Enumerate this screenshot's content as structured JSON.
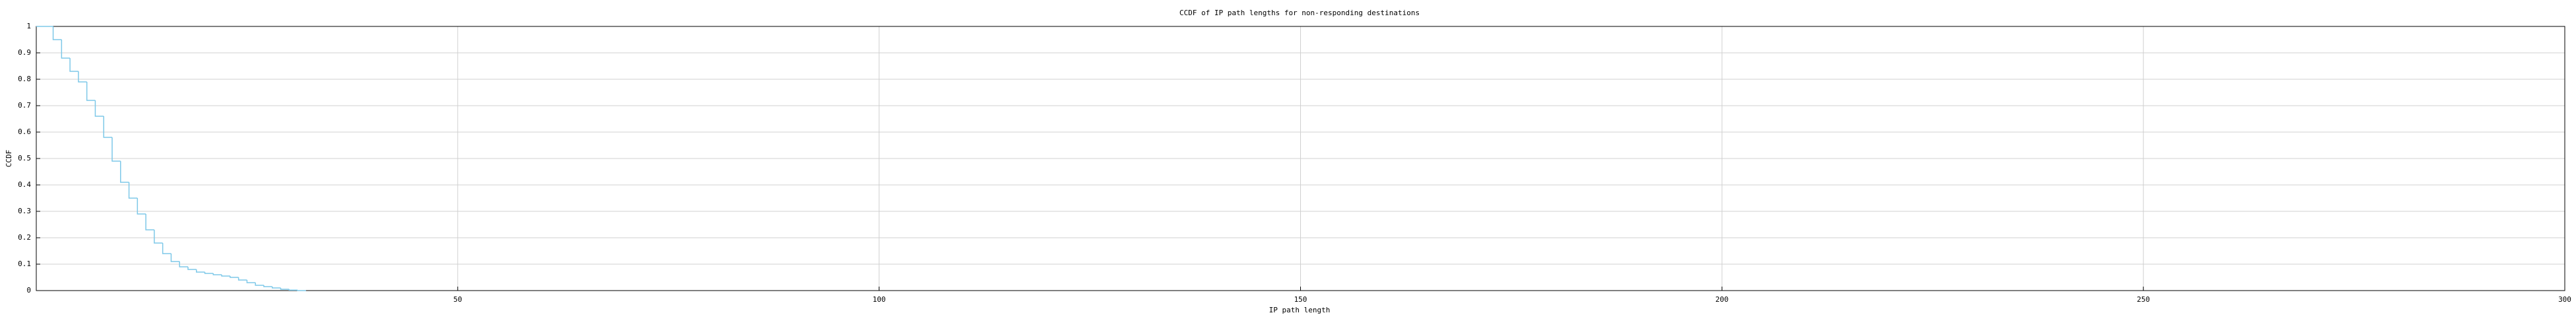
{
  "chart_data": {
    "type": "step",
    "title": "CCDF of IP path lengths for non-responding destinations",
    "x_label": "IP path length",
    "y_label": "CCDF",
    "x": [
      0,
      2,
      3,
      4,
      5,
      6,
      7,
      8,
      9,
      10,
      11,
      12,
      13,
      14,
      15,
      16,
      17,
      18,
      19,
      20,
      21,
      22,
      23,
      24,
      25,
      26,
      27,
      28,
      29,
      30,
      31
    ],
    "values": [
      1,
      0.95,
      0.88,
      0.83,
      0.79,
      0.72,
      0.66,
      0.58,
      0.49,
      0.41,
      0.35,
      0.29,
      0.23,
      0.18,
      0.14,
      0.11,
      0.09,
      0.08,
      0.07,
      0.065,
      0.06,
      0.055,
      0.05,
      0.04,
      0.03,
      0.02,
      0.015,
      0.01,
      0.005,
      0.002,
      0
    ],
    "color": "#7ec8e8",
    "xlim": [
      0,
      300
    ],
    "xticks": [
      50,
      100,
      150,
      200,
      250,
      300
    ],
    "ylim": [
      0,
      1
    ],
    "yticks": [
      0,
      0.1,
      0.2,
      0.3,
      0.4,
      0.5,
      0.6,
      0.7,
      0.8,
      0.9,
      1
    ],
    "grid": true
  }
}
